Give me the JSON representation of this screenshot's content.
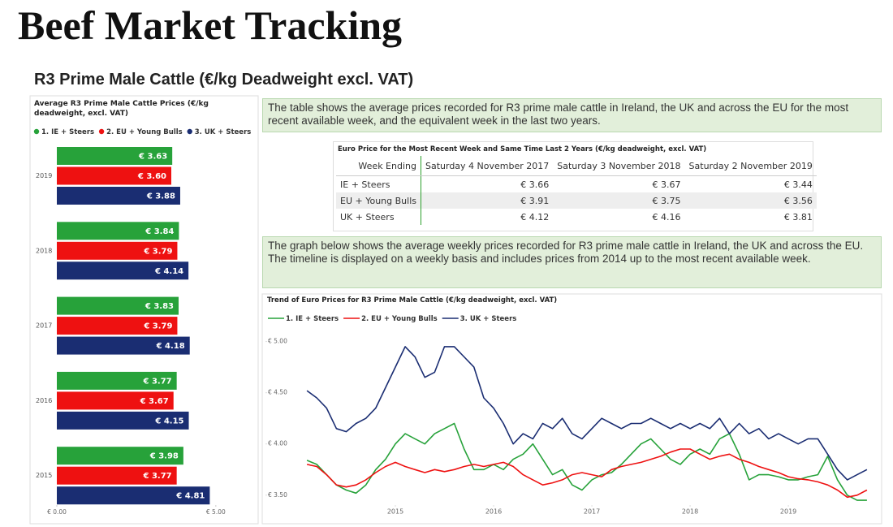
{
  "header": {
    "title": "Beef Market Tracking",
    "subtitle": "R3 Prime Male Cattle (€/kg Deadweight excl. VAT)"
  },
  "notes": [
    "The table shows the average prices recorded for R3 prime male cattle in Ireland, the UK and across the EU for the most recent available week, and the equivalent week in the last two years.",
    "The graph below shows the average weekly prices recorded for R3 prime male cattle in Ireland, the UK and across the EU. The timeline is displayed on a weekly basis and includes prices from 2014 up to the most recent available week."
  ],
  "table": {
    "title": "Euro Price for the Most Recent Week and Same Time Last 2 Years (€/kg deadweight, excl. VAT)",
    "header": [
      "Week Ending",
      "Saturday 4 November 2017",
      "Saturday 3 November 2018",
      "Saturday 2 November 2019"
    ],
    "rows": [
      [
        "IE + Steers",
        "€ 3.66",
        "€ 3.67",
        "€ 3.44"
      ],
      [
        "EU + Young Bulls",
        "€ 3.91",
        "€ 3.75",
        "€ 3.56"
      ],
      [
        "UK + Steers",
        "€ 4.12",
        "€ 4.16",
        "€ 3.81"
      ]
    ]
  },
  "chart_data": [
    {
      "type": "bar",
      "orientation": "horizontal",
      "title": "Average R3 Prime Male Cattle Prices (€/kg deadweight, excl. VAT)",
      "categories": [
        "2019",
        "2018",
        "2017",
        "2016",
        "2015"
      ],
      "series": [
        {
          "name": "1. IE + Steers",
          "color": "#27a23a",
          "values": [
            3.63,
            3.84,
            3.83,
            3.77,
            3.98
          ],
          "value_labels": [
            "€ 3.63",
            "€ 3.84",
            "€ 3.83",
            "€ 3.77",
            "€ 3.98"
          ]
        },
        {
          "name": "2. EU + Young Bulls",
          "color": "#ee1111",
          "values": [
            3.6,
            3.79,
            3.79,
            3.67,
            3.77
          ],
          "value_labels": [
            "€ 3.60",
            "€ 3.79",
            "€ 3.79",
            "€ 3.67",
            "€ 3.77"
          ]
        },
        {
          "name": "3. UK + Steers",
          "color": "#1a2d72",
          "values": [
            3.88,
            4.14,
            4.18,
            4.15,
            4.81
          ],
          "value_labels": [
            "€ 3.88",
            "€ 4.14",
            "€ 4.18",
            "€ 4.15",
            "€ 4.81"
          ]
        }
      ],
      "xlim": [
        0,
        6
      ],
      "xticks": [
        {
          "value": 0,
          "label": "€ 0.00"
        },
        {
          "value": 5,
          "label": "€ 5.00"
        }
      ]
    },
    {
      "type": "line",
      "title": "Trend of Euro Prices for R3 Prime Male Cattle (€/kg deadweight, excl. VAT)",
      "x": [
        2014.1,
        2014.2,
        2014.3,
        2014.4,
        2014.5,
        2014.6,
        2014.7,
        2014.8,
        2014.9,
        2015.0,
        2015.1,
        2015.2,
        2015.3,
        2015.4,
        2015.5,
        2015.6,
        2015.7,
        2015.8,
        2015.9,
        2016.0,
        2016.1,
        2016.2,
        2016.3,
        2016.4,
        2016.5,
        2016.6,
        2016.7,
        2016.8,
        2016.9,
        2017.0,
        2017.1,
        2017.2,
        2017.3,
        2017.4,
        2017.5,
        2017.6,
        2017.7,
        2017.8,
        2017.9,
        2018.0,
        2018.1,
        2018.2,
        2018.3,
        2018.4,
        2018.5,
        2018.6,
        2018.7,
        2018.8,
        2018.9,
        2019.0,
        2019.1,
        2019.2,
        2019.3,
        2019.4,
        2019.5,
        2019.6,
        2019.7,
        2019.8
      ],
      "series": [
        {
          "name": "1. IE + Steers",
          "color": "#27a23a",
          "values": [
            3.84,
            3.8,
            3.7,
            3.6,
            3.55,
            3.52,
            3.6,
            3.75,
            3.85,
            4.0,
            4.1,
            4.05,
            4.0,
            4.1,
            4.15,
            4.2,
            3.95,
            3.75,
            3.75,
            3.8,
            3.75,
            3.85,
            3.9,
            4.0,
            3.85,
            3.7,
            3.75,
            3.6,
            3.55,
            3.65,
            3.7,
            3.72,
            3.8,
            3.9,
            4.0,
            4.05,
            3.95,
            3.85,
            3.8,
            3.9,
            3.95,
            3.9,
            4.05,
            4.1,
            3.9,
            3.65,
            3.7,
            3.7,
            3.68,
            3.65,
            3.65,
            3.68,
            3.7,
            3.88,
            3.65,
            3.5,
            3.45,
            3.45
          ]
        },
        {
          "name": "2. EU + Young Bulls",
          "color": "#ee1111",
          "values": [
            3.8,
            3.78,
            3.7,
            3.6,
            3.58,
            3.6,
            3.65,
            3.72,
            3.78,
            3.82,
            3.78,
            3.75,
            3.72,
            3.75,
            3.73,
            3.75,
            3.78,
            3.8,
            3.78,
            3.8,
            3.82,
            3.78,
            3.7,
            3.65,
            3.6,
            3.62,
            3.65,
            3.7,
            3.72,
            3.7,
            3.68,
            3.75,
            3.78,
            3.8,
            3.82,
            3.85,
            3.88,
            3.92,
            3.95,
            3.95,
            3.9,
            3.85,
            3.88,
            3.9,
            3.85,
            3.82,
            3.78,
            3.75,
            3.72,
            3.68,
            3.66,
            3.65,
            3.63,
            3.6,
            3.55,
            3.48,
            3.5,
            3.55
          ]
        },
        {
          "name": "3. UK + Steers",
          "color": "#1a2d72",
          "values": [
            4.52,
            4.45,
            4.35,
            4.15,
            4.12,
            4.2,
            4.25,
            4.35,
            4.55,
            4.75,
            4.95,
            4.85,
            4.65,
            4.7,
            4.95,
            4.95,
            4.85,
            4.75,
            4.45,
            4.35,
            4.2,
            4.0,
            4.1,
            4.05,
            4.2,
            4.15,
            4.25,
            4.1,
            4.05,
            4.15,
            4.25,
            4.2,
            4.15,
            4.2,
            4.2,
            4.25,
            4.2,
            4.15,
            4.2,
            4.15,
            4.2,
            4.15,
            4.25,
            4.1,
            4.2,
            4.1,
            4.15,
            4.05,
            4.1,
            4.05,
            4.0,
            4.05,
            4.05,
            3.9,
            3.75,
            3.65,
            3.7,
            3.75
          ]
        }
      ],
      "xlim": [
        2014.0,
        2019.9
      ],
      "xticks": [
        2015,
        2016,
        2017,
        2018,
        2019
      ],
      "ylim": [
        3.3,
        5.1
      ],
      "yticks": [
        {
          "value": 3.5,
          "label": "€ 3.50"
        },
        {
          "value": 4.0,
          "label": "€ 4.00"
        },
        {
          "value": 4.5,
          "label": "€ 4.50"
        },
        {
          "value": 5.0,
          "label": "€ 5.00"
        }
      ]
    }
  ]
}
